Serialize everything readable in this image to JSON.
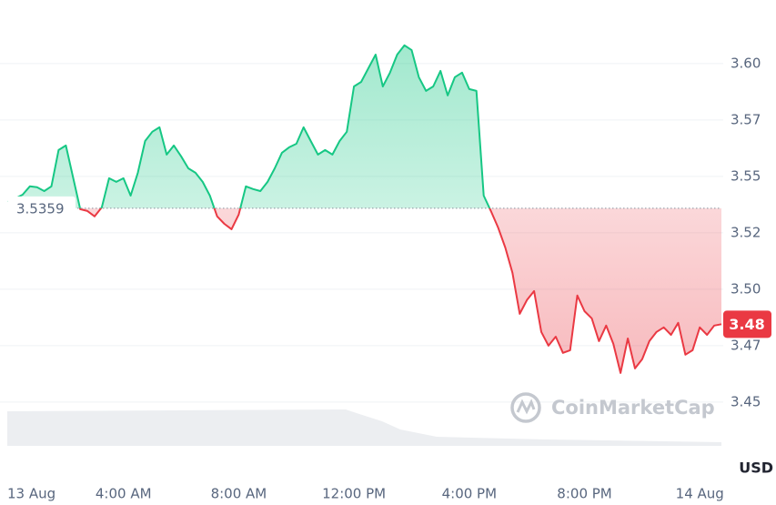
{
  "chart_data": {
    "type": "line",
    "x": [
      0,
      0.25,
      0.5,
      0.75,
      1,
      1.25,
      1.5,
      1.75,
      2,
      2.25,
      2.5,
      2.75,
      3,
      3.25,
      3.5,
      3.75,
      4,
      4.25,
      4.5,
      4.75,
      5,
      5.25,
      5.5,
      5.75,
      6,
      6.25,
      6.5,
      6.75,
      7,
      7.25,
      7.5,
      7.75,
      8,
      8.25,
      8.5,
      8.75,
      9,
      9.25,
      9.5,
      9.75,
      10,
      10.25,
      10.5,
      10.75,
      11,
      11.25,
      11.5,
      11.75,
      12,
      12.25,
      12.5,
      12.75,
      13,
      13.25,
      13.5,
      13.75,
      14,
      14.25,
      14.5,
      14.75,
      15,
      15.25,
      15.5,
      15.75,
      16,
      16.25,
      16.5,
      16.75,
      17,
      17.25,
      17.5,
      17.75,
      18,
      18.25,
      18.5,
      18.75,
      19,
      19.25,
      19.5,
      19.75,
      20,
      20.25,
      20.5,
      20.75,
      21,
      21.25,
      21.5,
      21.75,
      22,
      22.25,
      22.5,
      22.75,
      23,
      23.25,
      23.5,
      23.75,
      24,
      24.25,
      24.5,
      24.75
    ],
    "values": [
      3.5387,
      3.5403,
      3.5419,
      3.5456,
      3.5452,
      3.5435,
      3.5456,
      3.5617,
      3.5637,
      3.5496,
      3.5355,
      3.5347,
      3.5323,
      3.5363,
      3.5492,
      3.5476,
      3.5492,
      3.5415,
      3.5516,
      3.5657,
      3.5698,
      3.5718,
      3.5597,
      3.5637,
      3.5589,
      3.5536,
      3.5516,
      3.5476,
      3.5415,
      3.5323,
      3.529,
      3.5266,
      3.5331,
      3.5456,
      3.5444,
      3.5435,
      3.5476,
      3.5536,
      3.5605,
      3.5629,
      3.5645,
      3.5718,
      3.5657,
      3.5597,
      3.5617,
      3.5597,
      3.5657,
      3.5698,
      3.5899,
      3.5919,
      3.598,
      3.604,
      3.5899,
      3.596,
      3.604,
      3.6081,
      3.606,
      3.594,
      3.5879,
      3.5899,
      3.5968,
      3.5859,
      3.594,
      3.596,
      3.5887,
      3.5879,
      3.5415,
      3.5347,
      3.5274,
      3.5185,
      3.5073,
      3.4891,
      3.4952,
      3.4992,
      3.4811,
      3.475,
      3.479,
      3.4718,
      3.473,
      3.4972,
      3.4903,
      3.4871,
      3.477,
      3.4839,
      3.4758,
      3.4629,
      3.4782,
      3.4649,
      3.469,
      3.477,
      3.4811,
      3.4831,
      3.4798,
      3.4851,
      3.471,
      3.473,
      3.4831,
      3.4798,
      3.4839,
      3.4845
    ],
    "baseline": 3.5359,
    "last_price": {
      "value": 3.4845,
      "label": "3.48"
    },
    "colors": {
      "up": "#16c784",
      "down": "#ea3943"
    },
    "xlim": [
      0,
      24.75
    ],
    "xticks": [
      {
        "value": 0,
        "label": "13 Aug"
      },
      {
        "value": 4,
        "label": "4:00 AM"
      },
      {
        "value": 8,
        "label": "8:00 AM"
      },
      {
        "value": 12,
        "label": "12:00 PM"
      },
      {
        "value": 16,
        "label": "4:00 PM"
      },
      {
        "value": 20,
        "label": "8:00 PM"
      },
      {
        "value": 24,
        "label": "14 Aug"
      }
    ],
    "ylim": [
      3.4185,
      3.6282
    ],
    "yticks": [
      {
        "value": 3.6,
        "label": "3.60"
      },
      {
        "value": 3.575,
        "label": "3.57"
      },
      3.55,
      {
        "value": 3.525,
        "label": "3.52"
      },
      {
        "value": 3.5,
        "label": "3.50"
      },
      {
        "value": 3.475,
        "label": "3.47"
      },
      3.45
    ],
    "grid": true,
    "unit_label": "USD",
    "watermark": "CoinMarketCap"
  }
}
